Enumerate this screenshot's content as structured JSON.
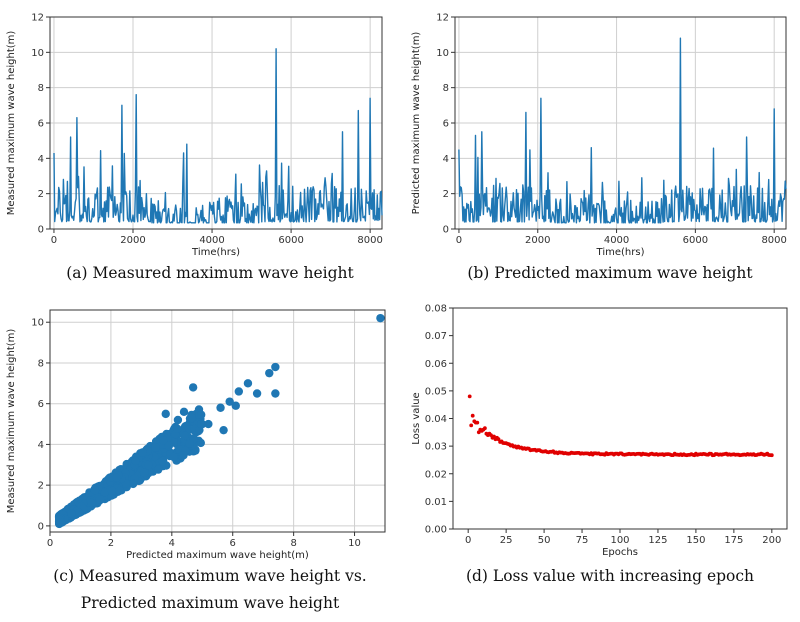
{
  "captions": {
    "a": "(a) Measured maximum wave height",
    "b": "(b) Predicted maximum wave height",
    "c_line1": "(c) Measured maximum wave height vs.",
    "c_line2": "Predicted maximum wave height",
    "d": "(d) Loss value with increasing epoch"
  },
  "colors": {
    "line": "#1f77b4",
    "loss": "#e00000",
    "grid": "#cfcfcf"
  },
  "chart_data": [
    {
      "id": "a",
      "type": "line",
      "title": "",
      "xlabel": "Time(hrs)",
      "ylabel": "Measured maximum wave height(m)",
      "xlim": [
        -100,
        8300
      ],
      "ylim": [
        0,
        12
      ],
      "xticks": [
        0,
        2000,
        4000,
        6000,
        8000
      ],
      "yticks": [
        0,
        2,
        4,
        6,
        8,
        10,
        12
      ],
      "grid": true,
      "peaks": [
        {
          "x": 0,
          "y": 4.3
        },
        {
          "x": 420,
          "y": 5.2
        },
        {
          "x": 580,
          "y": 6.3
        },
        {
          "x": 1720,
          "y": 7.0
        },
        {
          "x": 2080,
          "y": 7.6
        },
        {
          "x": 3280,
          "y": 4.3
        },
        {
          "x": 3360,
          "y": 4.8
        },
        {
          "x": 4600,
          "y": 3.1
        },
        {
          "x": 5620,
          "y": 10.2
        },
        {
          "x": 6350,
          "y": 4.4
        },
        {
          "x": 7300,
          "y": 5.5
        },
        {
          "x": 7700,
          "y": 6.7
        },
        {
          "x": 8000,
          "y": 7.4
        },
        {
          "x": 8150,
          "y": 7.1
        }
      ],
      "series_length": 8300,
      "baseline_range": [
        0.4,
        2.5
      ]
    },
    {
      "id": "b",
      "type": "line",
      "title": "",
      "xlabel": "Time(hrs)",
      "ylabel": "Predicted maximum wave height(m)",
      "xlim": [
        -100,
        8300
      ],
      "ylim": [
        0,
        12
      ],
      "xticks": [
        0,
        2000,
        4000,
        6000,
        8000
      ],
      "yticks": [
        0,
        2,
        4,
        6,
        8,
        10,
        12
      ],
      "grid": true,
      "peaks": [
        {
          "x": 0,
          "y": 4.5
        },
        {
          "x": 420,
          "y": 5.3
        },
        {
          "x": 580,
          "y": 5.5
        },
        {
          "x": 1700,
          "y": 6.6
        },
        {
          "x": 2080,
          "y": 7.4
        },
        {
          "x": 3360,
          "y": 4.6
        },
        {
          "x": 4640,
          "y": 2.9
        },
        {
          "x": 5620,
          "y": 10.8
        },
        {
          "x": 6350,
          "y": 4.2
        },
        {
          "x": 7300,
          "y": 5.2
        },
        {
          "x": 7650,
          "y": 6.2
        },
        {
          "x": 8000,
          "y": 6.8
        },
        {
          "x": 8150,
          "y": 6.7
        }
      ],
      "series_length": 8300,
      "baseline_range": [
        0.4,
        2.5
      ]
    },
    {
      "id": "c",
      "type": "scatter",
      "title": "",
      "xlabel": "Predicted maximum wave height(m)",
      "ylabel": "Measured maximum wave height(m)",
      "xlim": [
        0,
        11
      ],
      "ylim": [
        -0.3,
        10.6
      ],
      "xticks": [
        2,
        4,
        6,
        8,
        10
      ],
      "yticks": [
        0,
        2,
        4,
        6,
        8,
        10
      ],
      "xticklabels_extra": [
        0
      ],
      "grid": true,
      "outliers": [
        {
          "x": 10.85,
          "y": 10.2
        },
        {
          "x": 7.4,
          "y": 7.8
        },
        {
          "x": 7.2,
          "y": 7.5
        },
        {
          "x": 7.4,
          "y": 6.5
        },
        {
          "x": 6.5,
          "y": 7.0
        },
        {
          "x": 6.2,
          "y": 6.6
        },
        {
          "x": 6.1,
          "y": 5.9
        },
        {
          "x": 5.9,
          "y": 6.1
        },
        {
          "x": 5.6,
          "y": 5.8
        },
        {
          "x": 5.2,
          "y": 5.0
        },
        {
          "x": 4.7,
          "y": 6.8
        },
        {
          "x": 4.4,
          "y": 5.6
        },
        {
          "x": 4.2,
          "y": 5.2
        },
        {
          "x": 3.8,
          "y": 5.5
        },
        {
          "x": 5.7,
          "y": 4.7
        },
        {
          "x": 6.8,
          "y": 6.5
        }
      ],
      "cluster_range": [
        0.3,
        5.0
      ]
    },
    {
      "id": "d",
      "type": "scatter",
      "title": "",
      "xlabel": "Epochs",
      "ylabel": "Loss value",
      "xlim": [
        -10,
        210
      ],
      "ylim": [
        0,
        0.08
      ],
      "xticks": [
        0,
        25,
        50,
        75,
        100,
        125,
        150,
        175,
        200
      ],
      "yticks": [
        0.0,
        0.01,
        0.02,
        0.03,
        0.04,
        0.05,
        0.06,
        0.07,
        0.08
      ],
      "ytickformat": 2,
      "grid": false,
      "curve": {
        "start_epoch": 1,
        "end_epoch": 200,
        "initial": 0.048,
        "final": 0.027,
        "decay": 20
      },
      "early_points": [
        {
          "x": 1,
          "y": 0.048
        },
        {
          "x": 2,
          "y": 0.0375
        },
        {
          "x": 3,
          "y": 0.041
        },
        {
          "x": 4,
          "y": 0.039
        },
        {
          "x": 5,
          "y": 0.0385
        },
        {
          "x": 6,
          "y": 0.0385
        },
        {
          "x": 7,
          "y": 0.035
        },
        {
          "x": 8,
          "y": 0.036
        },
        {
          "x": 9,
          "y": 0.0355
        },
        {
          "x": 10,
          "y": 0.036
        },
        {
          "x": 11,
          "y": 0.0365
        },
        {
          "x": 12,
          "y": 0.0345
        },
        {
          "x": 13,
          "y": 0.034
        },
        {
          "x": 14,
          "y": 0.0345
        },
        {
          "x": 15,
          "y": 0.034
        },
        {
          "x": 16,
          "y": 0.033
        },
        {
          "x": 17,
          "y": 0.0335
        },
        {
          "x": 18,
          "y": 0.0325
        },
        {
          "x": 19,
          "y": 0.033
        },
        {
          "x": 20,
          "y": 0.0325
        }
      ]
    }
  ]
}
